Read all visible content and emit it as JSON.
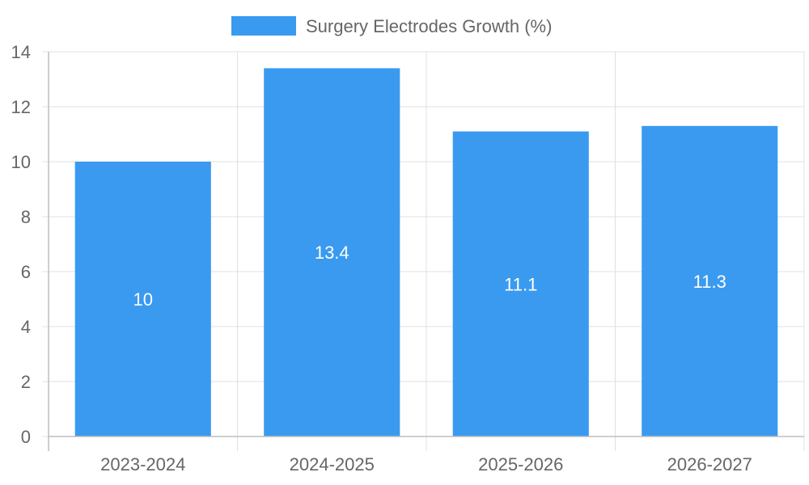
{
  "chart_data": {
    "type": "bar",
    "categories": [
      "2023-2024",
      "2024-2025",
      "2025-2026",
      "2026-2027"
    ],
    "series": [
      {
        "name": "Surgery Electrodes Growth (%)",
        "values": [
          10,
          13.4,
          11.1,
          11.3
        ],
        "color": "#3a9af0"
      }
    ],
    "ylim": [
      0,
      14
    ],
    "yticks": [
      0,
      2,
      4,
      6,
      8,
      10,
      12,
      14
    ],
    "grid": true,
    "legend_position": "top-center",
    "data_labels": true
  }
}
